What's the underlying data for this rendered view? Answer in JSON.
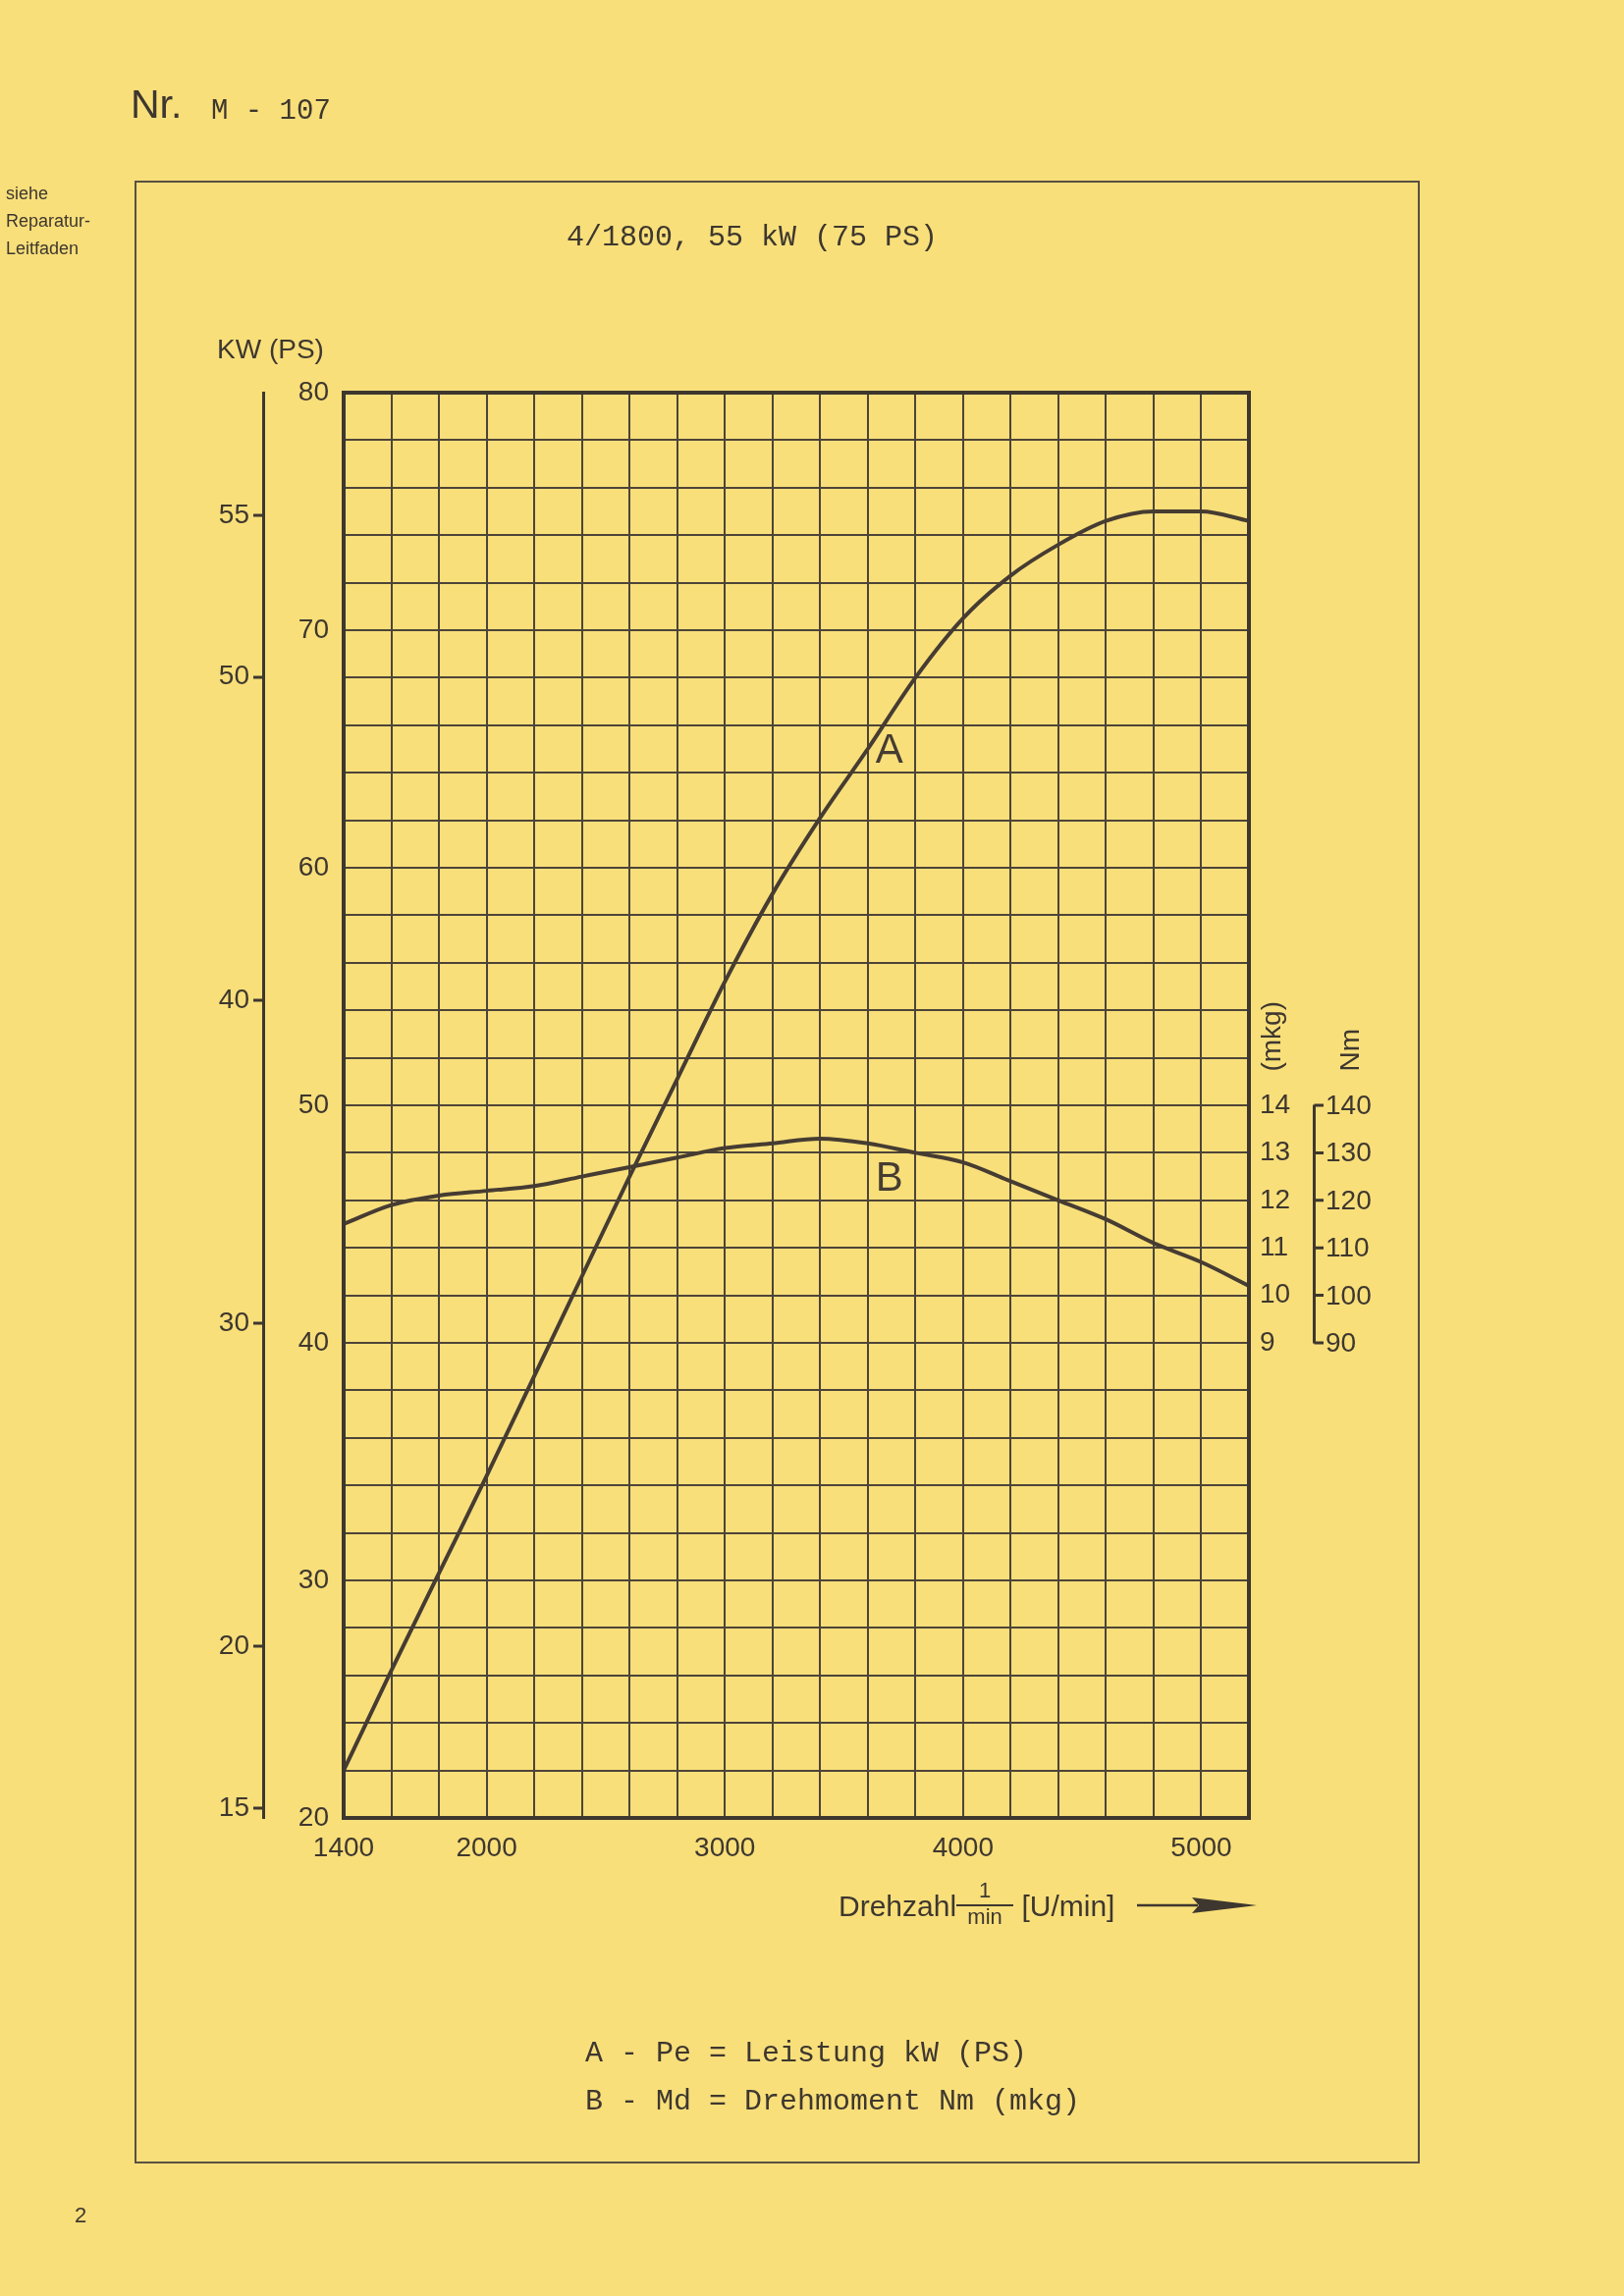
{
  "chart_data": {
    "type": "line",
    "title": "4/1800, 55 kW (75 PS)",
    "xlabel": "Drehzahl$^{1}$$_{min}$ [U/min]",
    "ylabel": "KW (PS)",
    "y2label": "(mkg)",
    "x": [
      1400,
      1600,
      1800,
      2000,
      2200,
      2400,
      2600,
      2800,
      3000,
      3200,
      3400,
      3600,
      3800,
      4000,
      4200,
      4400,
      4600,
      4800,
      5000,
      5200
    ],
    "series": [
      {
        "name": "A",
        "color": "#463c32",
        "values": [
          22,
          26.2,
          30.3,
          34.4,
          38.6,
          42.8,
          47.0,
          51.1,
          55.2,
          58.9,
          62.1,
          65.0,
          68.0,
          70.5,
          72.3,
          73.6,
          74.6,
          75.0,
          75.0,
          74.6
        ]
      },
      {
        "name": "B",
        "color": "#463c32",
        "axis": "y2",
        "values": [
          11.5,
          11.9,
          12.1,
          12.2,
          12.3,
          12.5,
          12.7,
          12.9,
          13.1,
          13.2,
          13.3,
          13.2,
          13.0,
          12.8,
          12.4,
          12.0,
          11.6,
          11.1,
          10.7,
          10.2
        ]
      }
    ],
    "xlim": [
      1400,
      5200
    ],
    "xticks": [
      1400,
      {
        "value": 1600,
        "label": null
      },
      {
        "value": 1800,
        "label": null
      },
      2000,
      {
        "value": 2200,
        "label": null
      },
      {
        "value": 2400,
        "label": null
      },
      {
        "value": 2600,
        "label": null
      },
      {
        "value": 2800,
        "label": null
      },
      3000,
      {
        "value": 3200,
        "label": null
      },
      {
        "value": 3400,
        "label": null
      },
      {
        "value": 3600,
        "label": null
      },
      {
        "value": 3800,
        "label": null
      },
      4000,
      {
        "value": 4200,
        "label": null
      },
      {
        "value": 4400,
        "label": null
      },
      {
        "value": 4600,
        "label": null
      },
      {
        "value": 4800,
        "label": null
      },
      5000,
      {
        "value": 5200,
        "label": null
      }
    ],
    "ylim": [
      20,
      80
    ],
    "yticks": [
      20,
      {
        "value": 22,
        "label": null
      },
      {
        "value": 24,
        "label": null
      },
      {
        "value": 26,
        "label": null
      },
      {
        "value": 28,
        "label": null
      },
      30,
      {
        "value": 32,
        "label": null
      },
      {
        "value": 34,
        "label": null
      },
      {
        "value": 36,
        "label": null
      },
      {
        "value": 38,
        "label": null
      },
      40,
      {
        "value": 42,
        "label": null
      },
      {
        "value": 44,
        "label": null
      },
      {
        "value": 46,
        "label": null
      },
      {
        "value": 48,
        "label": null
      },
      50,
      {
        "value": 52,
        "label": null
      },
      {
        "value": 54,
        "label": null
      },
      {
        "value": 56,
        "label": null
      },
      {
        "value": 58,
        "label": null
      },
      60,
      {
        "value": 62,
        "label": null
      },
      {
        "value": 64,
        "label": null
      },
      {
        "value": 66,
        "label": null
      },
      {
        "value": 68,
        "label": null
      },
      70,
      {
        "value": 72,
        "label": null
      },
      {
        "value": 74,
        "label": null
      },
      {
        "value": 76,
        "label": null
      },
      {
        "value": 78,
        "label": null
      },
      80
    ],
    "y2lim": [
      -1,
      29
    ],
    "y2ticks": [
      9,
      10,
      11,
      12,
      13,
      14
    ],
    "y3lim": [
      14.7,
      58.8
    ],
    "y3ticks": [
      15,
      20,
      30,
      40,
      50,
      55
    ],
    "grid": true,
    "legend": false,
    "annotations": [
      "Nr.",
      "M - 107",
      "siehe Reparatur-Leitfaden",
      "Nm",
      "140",
      "130",
      "120",
      "110",
      "100",
      "90",
      "A - Pe = Leistung kW (PS)",
      "B - Md = Drehmoment Nm (mkg)",
      "2"
    ]
  }
}
